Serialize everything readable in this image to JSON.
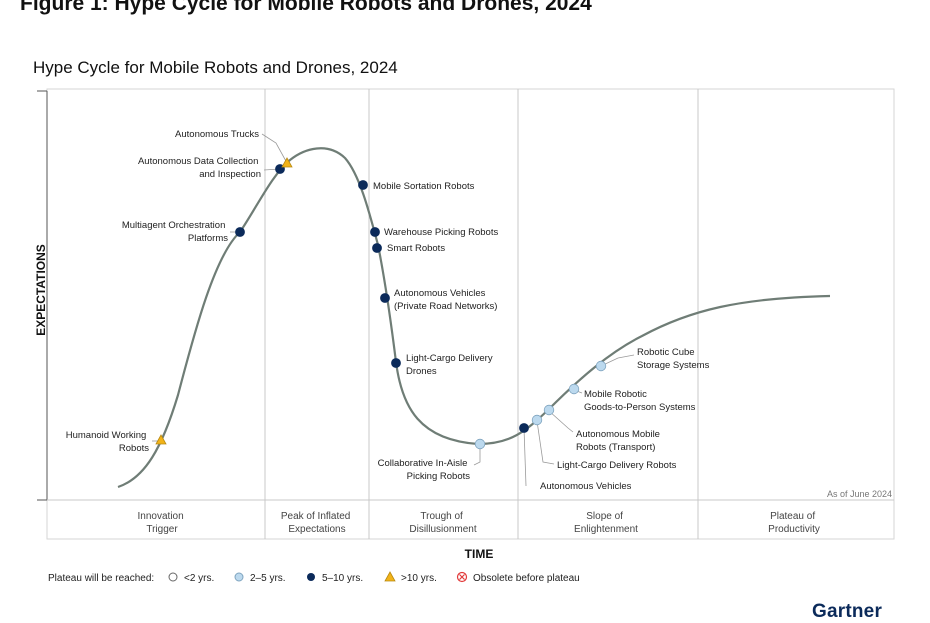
{
  "figure_heading": "Figure 1: Hype Cycle for Mobile Robots and Drones, 2024",
  "title": "Hype Cycle for Mobile Robots and Drones, 2024",
  "y_axis_label": "EXPECTATIONS",
  "x_axis_label": "TIME",
  "as_of": "As of June 2024",
  "brand": "Gartner",
  "phases": [
    {
      "label_lines": [
        "Innovation",
        "Trigger"
      ]
    },
    {
      "label_lines": [
        "Peak of Inflated",
        "Expectations"
      ]
    },
    {
      "label_lines": [
        "Trough of",
        "Disillusionment"
      ]
    },
    {
      "label_lines": [
        "Slope of",
        "Enlightenment"
      ]
    },
    {
      "label_lines": [
        "Plateau of",
        "Productivity"
      ]
    }
  ],
  "legend": {
    "title": "Plateau will be reached:",
    "items": [
      {
        "label": "<2 yrs.",
        "marker": "circle",
        "color": "#ffffff"
      },
      {
        "label": "2–5 yrs.",
        "marker": "circle",
        "color": "#bcd9ee"
      },
      {
        "label": "5–10 yrs.",
        "marker": "circle",
        "color": "#0b2a5a"
      },
      {
        "label": ">10 yrs.",
        "marker": "triangle",
        "color": "#f2b318"
      },
      {
        "label": "Obsolete before plateau",
        "marker": "obsolete",
        "color": "#e23b3b"
      }
    ]
  },
  "colors": {
    "curve": "#6f7d76",
    "lt2": "#ffffff",
    "y2to5": "#bcd9ee",
    "y5to10": "#0b2a5a",
    "gt10": "#f2b318",
    "obsolete": "#e23b3b"
  },
  "technologies": [
    {
      "name_lines": [
        "Humanoid Working",
        "Robots"
      ],
      "plateau": ">10 yrs."
    },
    {
      "name_lines": [
        "Multiagent Orchestration",
        "Platforms"
      ],
      "plateau": "5–10 yrs."
    },
    {
      "name_lines": [
        "Autonomous Data Collection",
        "and Inspection"
      ],
      "plateau": "5–10 yrs."
    },
    {
      "name_lines": [
        "Autonomous Trucks"
      ],
      "plateau": ">10 yrs."
    },
    {
      "name_lines": [
        "Mobile Sortation Robots"
      ],
      "plateau": "5–10 yrs."
    },
    {
      "name_lines": [
        "Warehouse Picking Robots"
      ],
      "plateau": "5–10 yrs."
    },
    {
      "name_lines": [
        "Smart Robots"
      ],
      "plateau": "5–10 yrs."
    },
    {
      "name_lines": [
        "Autonomous Vehicles",
        "(Private Road Networks)"
      ],
      "plateau": "5–10 yrs."
    },
    {
      "name_lines": [
        "Light-Cargo Delivery",
        "Drones"
      ],
      "plateau": "5–10 yrs."
    },
    {
      "name_lines": [
        "Collaborative In-Aisle",
        "Picking Robots"
      ],
      "plateau": "2–5 yrs."
    },
    {
      "name_lines": [
        "Autonomous Vehicles"
      ],
      "plateau": "5–10 yrs."
    },
    {
      "name_lines": [
        "Light-Cargo Delivery Robots"
      ],
      "plateau": "2–5 yrs."
    },
    {
      "name_lines": [
        "Autonomous Mobile",
        "Robots (Transport)"
      ],
      "plateau": "2–5 yrs."
    },
    {
      "name_lines": [
        "Mobile Robotic",
        "Goods-to-Person Systems"
      ],
      "plateau": "2–5 yrs."
    },
    {
      "name_lines": [
        "Robotic Cube",
        "Storage Systems"
      ],
      "plateau": "2–5 yrs."
    }
  ]
}
